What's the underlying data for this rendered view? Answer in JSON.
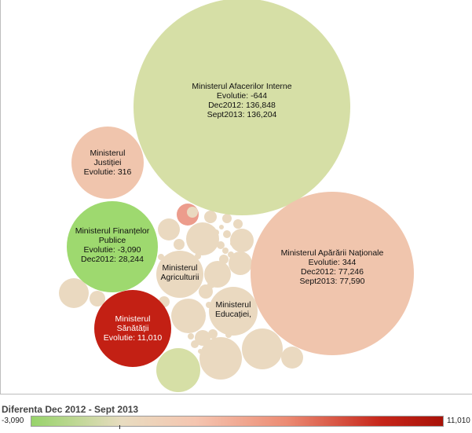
{
  "chart_data": {
    "type": "bubble",
    "legend": {
      "title": "Diferenta Dec 2012 - Sept 2013",
      "min_label": "-3,090",
      "max_label": "11,010",
      "min": -3090,
      "max": 11010
    },
    "bubbles": [
      {
        "id": "afaceri-interne",
        "lines": [
          "Ministerul Afacerilor Interne",
          "Evolutie: -644",
          "Dec2012: 136,848",
          "Sept2013: 136,204"
        ],
        "evolutie": -644,
        "dec2012": 136848,
        "sept2013": 136204
      },
      {
        "id": "aparare",
        "lines": [
          "Ministerul Apărării Naționale",
          "Evolutie: 344",
          "Dec2012: 77,246",
          "Sept2013: 77,590"
        ],
        "evolutie": 344,
        "dec2012": 77246,
        "sept2013": 77590
      },
      {
        "id": "justitie",
        "lines": [
          "Ministerul",
          "Justiției",
          "Evolutie: 316"
        ],
        "evolutie": 316
      },
      {
        "id": "finante",
        "lines": [
          "Ministerul Finanțelor",
          "Publice",
          "Evolutie: -3,090",
          "Dec2012: 28,244"
        ],
        "evolutie": -3090,
        "dec2012": 28244
      },
      {
        "id": "sanatate",
        "lines": [
          "Ministerul",
          "Sănătății",
          "Evolutie: 11,010"
        ],
        "evolutie": 11010
      },
      {
        "id": "agricultura",
        "lines": [
          "Ministerul",
          "Agriculturii"
        ]
      },
      {
        "id": "educatie",
        "lines": [
          "Ministerul",
          "Educației,"
        ]
      }
    ],
    "unlabeled_bubbles": 41
  }
}
